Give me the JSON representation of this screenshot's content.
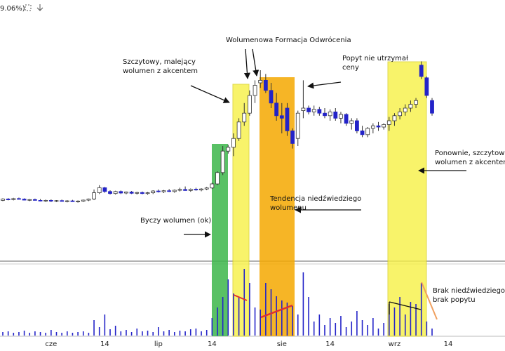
{
  "chart_data": {
    "type": "candlestick",
    "subtitle": "9.06%)",
    "categories": [
      null,
      null,
      null,
      null,
      null,
      null,
      null,
      null,
      null,
      "cze",
      null,
      null,
      null,
      null,
      null,
      null,
      null,
      null,
      null,
      "14",
      null,
      null,
      null,
      null,
      null,
      null,
      null,
      null,
      null,
      "lip",
      null,
      null,
      null,
      null,
      null,
      null,
      null,
      null,
      null,
      "14",
      null,
      null,
      null,
      null,
      null,
      null,
      null,
      null,
      null,
      null,
      null,
      null,
      "sie",
      null,
      null,
      null,
      null,
      null,
      null,
      null,
      null,
      "14",
      null,
      null,
      null,
      null,
      null,
      null,
      null,
      null,
      null,
      null,
      null,
      "wrz",
      null,
      null,
      null,
      null,
      null,
      null,
      null,
      null,
      null,
      "14"
    ],
    "series": [
      {
        "name": "price",
        "color": "#2323c8",
        "open": [
          23.5,
          24,
          23.8,
          24.2,
          24,
          23.6,
          23.8,
          23.5,
          23.3,
          23.5,
          23.2,
          23.4,
          23.1,
          23.3,
          23,
          23.2,
          23.6,
          24,
          26.5,
          28.5,
          27,
          26.2,
          27,
          26.4,
          26.8,
          26.3,
          26.6,
          26.2,
          26.5,
          27.2,
          26.9,
          27.3,
          27,
          27.5,
          27.8,
          27.4,
          27.9,
          27.6,
          28,
          28.4,
          30,
          34.5,
          43,
          44.5,
          48,
          54.5,
          58,
          65,
          70,
          71,
          67,
          62,
          57,
          60,
          51,
          48,
          59,
          60,
          58.5,
          59.5,
          58,
          57,
          58.5,
          56,
          57.5,
          54,
          55,
          51,
          49.5,
          52,
          53,
          52.5,
          53.5,
          55,
          57,
          58.5,
          60,
          61.5,
          77,
          72,
          63,
          null,
          null,
          null
        ],
        "high": [
          24.3,
          24.4,
          24.5,
          24.6,
          24.3,
          24,
          24.2,
          24,
          23.8,
          23.9,
          23.6,
          23.8,
          23.6,
          23.7,
          23.5,
          23.8,
          24.2,
          27.8,
          29.5,
          28.8,
          27.5,
          27.3,
          27.4,
          27,
          27.2,
          26.9,
          27,
          26.8,
          27.5,
          27.8,
          27.6,
          28,
          27.8,
          28.5,
          29,
          28.2,
          28.5,
          28.3,
          28.8,
          30.5,
          35,
          45,
          45.5,
          50,
          56,
          62,
          67,
          71,
          75,
          73.5,
          70,
          66,
          62,
          62,
          52,
          59,
          71,
          61,
          61,
          60.5,
          60,
          59.5,
          60,
          58.5,
          58,
          56,
          56,
          53,
          52.5,
          54,
          54.5,
          54,
          56.5,
          58,
          60,
          61.5,
          63,
          64,
          78.5,
          72.5,
          64,
          null,
          null,
          null
        ],
        "low": [
          23.2,
          23.5,
          23.5,
          23.8,
          23.5,
          23.2,
          23.4,
          23.1,
          22.9,
          22.8,
          22.8,
          23,
          22.7,
          22.9,
          22.6,
          22.9,
          23.2,
          23.6,
          26,
          26.5,
          25.8,
          25.8,
          26,
          25.9,
          26,
          25.8,
          25.9,
          25.7,
          26,
          26.6,
          26.4,
          26.8,
          26.5,
          27,
          27.3,
          26.9,
          27.3,
          27.1,
          27.5,
          28,
          29.5,
          33.5,
          42,
          41,
          47,
          53,
          57,
          62,
          68,
          66,
          60,
          55,
          50,
          49,
          44,
          45,
          56,
          57.5,
          57,
          57,
          56,
          55,
          55,
          54,
          53,
          51.5,
          50,
          48.5,
          48.5,
          50,
          51,
          51.5,
          51,
          53,
          55.5,
          57,
          58.5,
          60,
          71.5,
          64,
          57,
          null,
          null,
          null
        ],
        "close": [
          24,
          23.8,
          24.2,
          24,
          23.6,
          23.8,
          23.5,
          23.3,
          23.5,
          23.2,
          23.4,
          23.1,
          23.3,
          23,
          23.2,
          23.6,
          24,
          26.5,
          28.5,
          27,
          26.2,
          27,
          26.4,
          26.8,
          26.3,
          26.6,
          26.2,
          26.5,
          27.2,
          26.9,
          27.3,
          27,
          27.5,
          27.8,
          27.4,
          27.9,
          27.6,
          28,
          28.4,
          30,
          34.5,
          43,
          44.5,
          48,
          54.5,
          58,
          65,
          69,
          71,
          67,
          62,
          57,
          56,
          51,
          46,
          58,
          60,
          58.5,
          59.5,
          58,
          57,
          58.5,
          56,
          57.5,
          54,
          55,
          51,
          49.5,
          52,
          53,
          52.5,
          53.5,
          55,
          57,
          58.5,
          60,
          61.5,
          63,
          72.5,
          65,
          58,
          null,
          null,
          null
        ],
        "volume": [
          5,
          6,
          4,
          5,
          7,
          4,
          6,
          5,
          4,
          8,
          5,
          4,
          6,
          4,
          5,
          6,
          4,
          22,
          12,
          30,
          9,
          14,
          6,
          8,
          5,
          10,
          6,
          7,
          5,
          12,
          6,
          8,
          5,
          7,
          6,
          9,
          10,
          6,
          8,
          25,
          40,
          55,
          80,
          60,
          55,
          95,
          75,
          40,
          37,
          75,
          66,
          56,
          50,
          47,
          42,
          30,
          90,
          55,
          20,
          30,
          15,
          25,
          18,
          28,
          12,
          20,
          35,
          22,
          15,
          25,
          10,
          18,
          45,
          40,
          55,
          30,
          48,
          45,
          75,
          20,
          10,
          null,
          null,
          null
        ]
      }
    ],
    "ylim": [
      0,
      100
    ],
    "volume_ylim": [
      0,
      100
    ],
    "annotations": [
      {
        "lines": [
          "Wolumenowa Formacja Odwrócenia"
        ]
      },
      {
        "lines": [
          "Szczytowy, malejący",
          "wolumen z akcentem"
        ]
      },
      {
        "lines": [
          "Popyt nie utrzymał",
          "ceny"
        ]
      },
      {
        "lines": [
          "Tendencja niedźwiedziego",
          "wolumenu"
        ]
      },
      {
        "lines": [
          "Byczy wolumen (ok)"
        ]
      },
      {
        "lines": [
          "Ponownie, szczytowy",
          "wolumen z akcentem"
        ]
      },
      {
        "lines": [
          "Brak niedźwiedziego",
          "brak popytu"
        ]
      }
    ]
  }
}
